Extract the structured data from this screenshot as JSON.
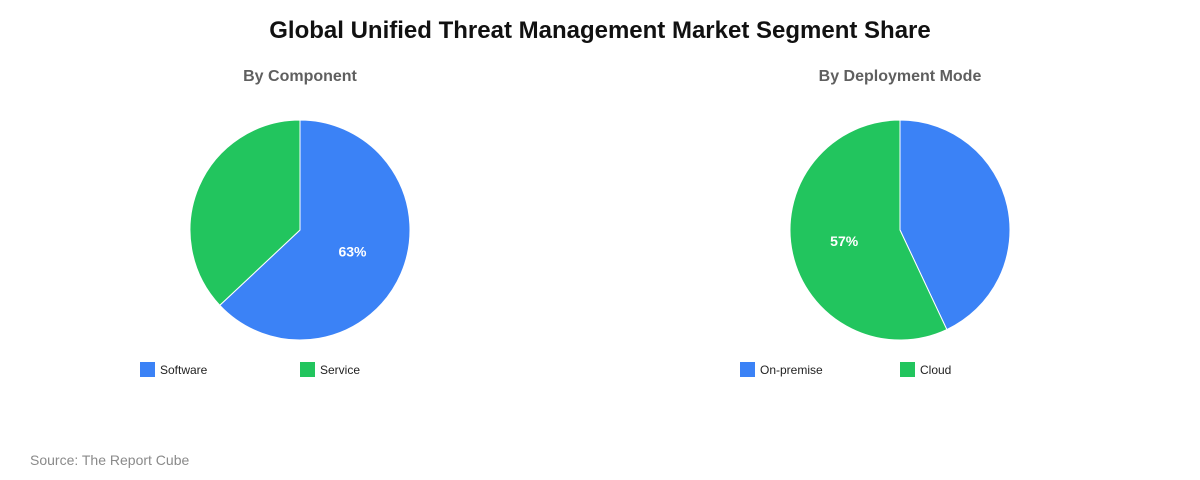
{
  "title": "Global Unified Threat Management Market Segment Share",
  "source": "Source: The Report Cube",
  "chart_data": [
    {
      "type": "pie",
      "title": "By Component",
      "categories": [
        "Software",
        "Service"
      ],
      "values": [
        63,
        37
      ],
      "labels_shown": [
        "63%",
        ""
      ],
      "colors": [
        "#3b82f6",
        "#22c55e"
      ],
      "legend": "bottom"
    },
    {
      "type": "pie",
      "title": "By Deployment Mode",
      "categories": [
        "On-premise",
        "Cloud"
      ],
      "values": [
        43,
        57
      ],
      "labels_shown": [
        "",
        "57%"
      ],
      "colors": [
        "#3b82f6",
        "#22c55e"
      ],
      "legend": "bottom"
    }
  ]
}
